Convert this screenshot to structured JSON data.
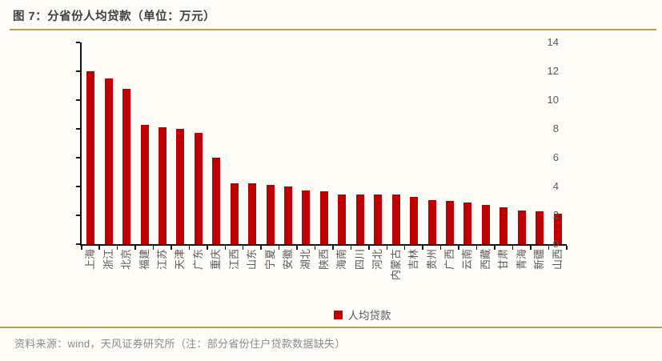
{
  "title": "图 7：分省份人均贷款（单位：万元）",
  "chart_data": {
    "type": "bar",
    "title": "图 7：分省份人均贷款（单位：万元）",
    "unit": "万元",
    "categories": [
      "上海",
      "浙江",
      "北京",
      "福建",
      "江苏",
      "天津",
      "广东",
      "重庆",
      "江西",
      "山东",
      "宁夏",
      "安徽",
      "湖北",
      "陕西",
      "海南",
      "四川",
      "河北",
      "内蒙古",
      "吉林",
      "贵州",
      "广西",
      "云南",
      "西藏",
      "甘肃",
      "青海",
      "新疆",
      "山西"
    ],
    "values": [
      12.0,
      11.5,
      10.8,
      8.3,
      8.1,
      8.0,
      7.7,
      6.0,
      4.2,
      4.2,
      4.1,
      4.0,
      3.7,
      3.65,
      3.45,
      3.45,
      3.45,
      3.45,
      3.3,
      3.05,
      3.0,
      2.9,
      2.7,
      2.55,
      2.35,
      2.3,
      2.1
    ],
    "ylim": [
      0,
      14
    ],
    "yticks": [
      0,
      2,
      4,
      6,
      8,
      10,
      12,
      14
    ],
    "xlabel": "",
    "ylabel": "",
    "grid": false,
    "legend_position": "bottom",
    "series_name": "人均贷款",
    "bar_color": "#c00000"
  },
  "legend": {
    "label": "人均贷款"
  },
  "footer": {
    "source": "资料来源：wind，天风证券研究所（注：部分省份住户贷款数据缺失）"
  },
  "colors": {
    "bar": "#c00000",
    "accent_line": "#bf9e45",
    "title_text": "#3f3f3f",
    "axis_text": "#595959",
    "footer_text": "#8a8a8a",
    "background": "#fdfcf6"
  }
}
